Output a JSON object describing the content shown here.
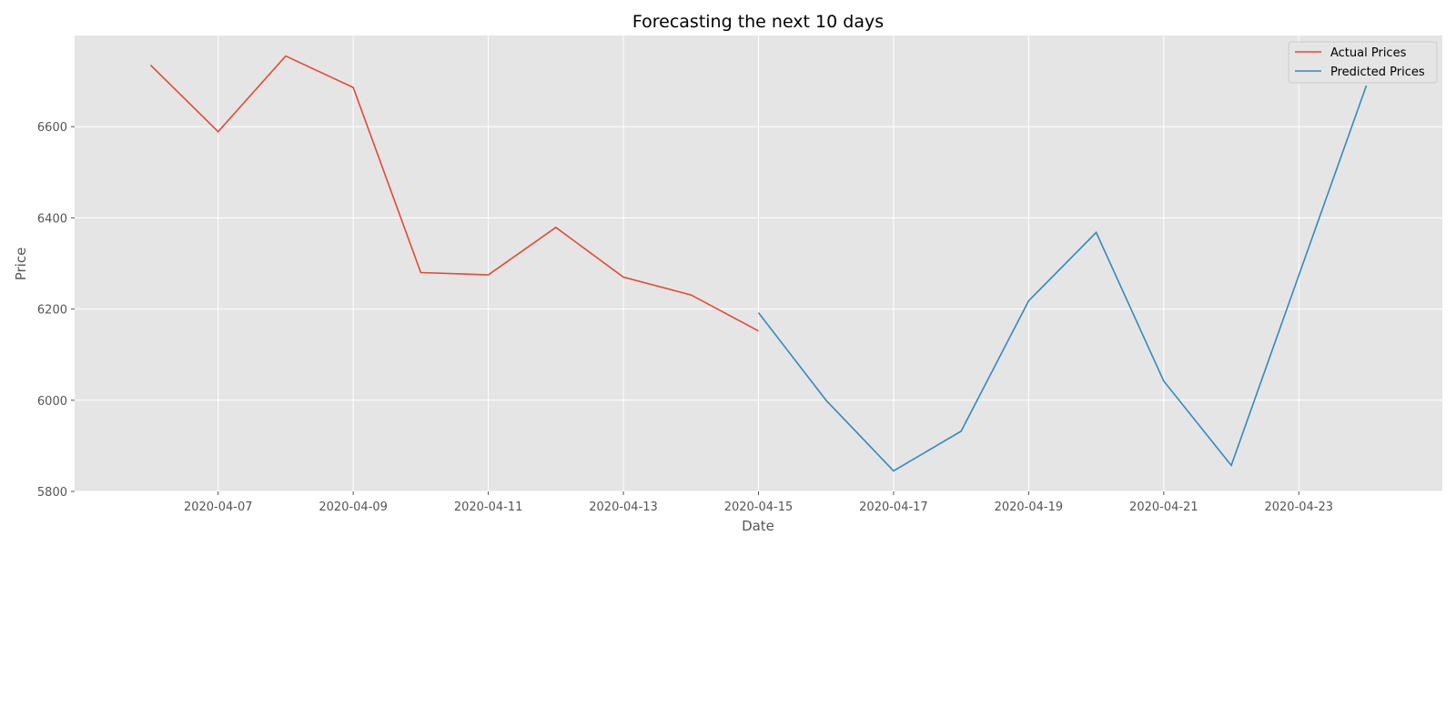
{
  "chart_data": {
    "type": "line",
    "title": "Forecasting the next 10 days",
    "xlabel": "Date",
    "ylabel": "Price",
    "xlim": [
      "2020-04-04T21:00:00",
      "2020-04-25T03:00:00"
    ],
    "ylim": [
      5800,
      6800
    ],
    "x_ticks": [
      "2020-04-07",
      "2020-04-09",
      "2020-04-11",
      "2020-04-13",
      "2020-04-15",
      "2020-04-17",
      "2020-04-19",
      "2020-04-21",
      "2020-04-23"
    ],
    "y_ticks": [
      5800,
      6000,
      6200,
      6400,
      6600
    ],
    "grid": true,
    "legend_position": "top-right",
    "series": [
      {
        "name": "Actual Prices",
        "color": "#E24A33",
        "x": [
          "2020-04-06",
          "2020-04-07",
          "2020-04-08",
          "2020-04-09",
          "2020-04-10",
          "2020-04-11",
          "2020-04-12",
          "2020-04-13",
          "2020-04-14",
          "2020-04-15"
        ],
        "values": [
          6735,
          6589,
          6755,
          6686,
          6280,
          6275,
          6379,
          6270,
          6231,
          6152
        ]
      },
      {
        "name": "Predicted Prices",
        "color": "#348ABD",
        "x": [
          "2020-04-15",
          "2020-04-16",
          "2020-04-17",
          "2020-04-18",
          "2020-04-19",
          "2020-04-20",
          "2020-04-21",
          "2020-04-22",
          "2020-04-23",
          "2020-04-24"
        ],
        "values": [
          6192,
          6000,
          5845,
          5932,
          6218,
          6368,
          6042,
          5857,
          6274,
          6690
        ]
      }
    ]
  }
}
